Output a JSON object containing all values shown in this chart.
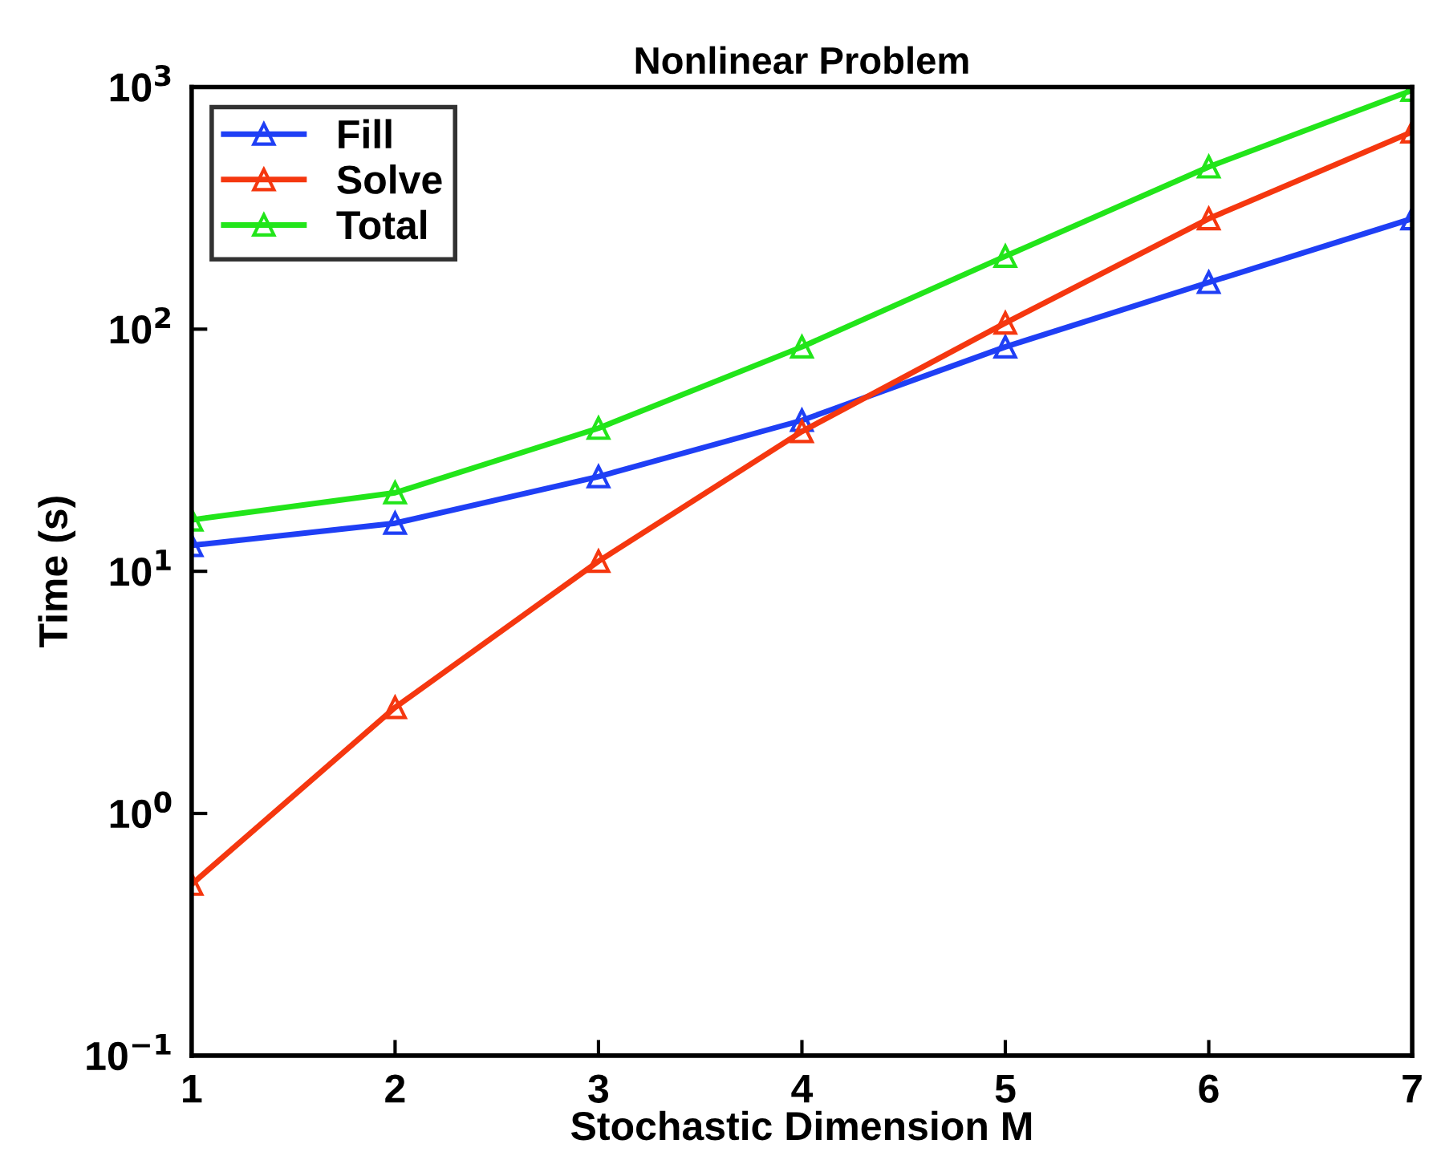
{
  "chart_data": {
    "type": "line",
    "title": "Nonlinear Problem",
    "xlabel": "Stochastic Dimension M",
    "ylabel": "Time (s)",
    "x": [
      1,
      2,
      3,
      4,
      5,
      6,
      7
    ],
    "series": [
      {
        "name": "Fill",
        "color": "#1f3ff5",
        "values": [
          12.8,
          15.8,
          24.6,
          42,
          84.5,
          156,
          286
        ]
      },
      {
        "name": "Solve",
        "color": "#f5370f",
        "values": [
          0.51,
          2.74,
          11,
          37.8,
          106,
          286,
          653
        ]
      },
      {
        "name": "Total",
        "color": "#22e51a",
        "values": [
          16.3,
          21.1,
          39,
          84.5,
          200,
          468,
          970
        ]
      }
    ],
    "log": "y",
    "xlim": [
      1,
      7
    ],
    "xticks": [
      1,
      2,
      3,
      4,
      5,
      6,
      7
    ],
    "ylim": [
      0.1,
      1000
    ],
    "yticks": [
      {
        "value": 0.1,
        "label": "10$^{−1}$"
      },
      {
        "value": 1,
        "label": "10$^{0}$"
      },
      {
        "value": 10,
        "label": "10$^{1}$"
      },
      {
        "value": 100,
        "label": "10$^{2}$"
      },
      {
        "value": 1000,
        "label": "10$^{3}$"
      }
    ],
    "marker": "triangle",
    "line_style": "solid",
    "grid": false,
    "legend": "top left"
  }
}
